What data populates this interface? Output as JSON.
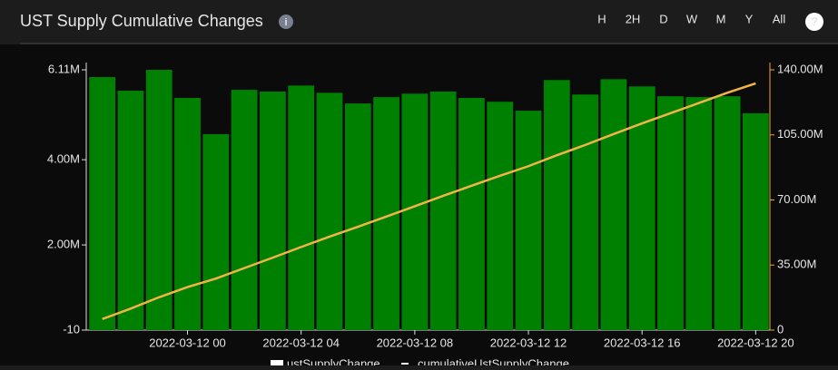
{
  "header": {
    "title": "UST Supply Cumulative Changes",
    "ranges": [
      "H",
      "2H",
      "D",
      "W",
      "M",
      "Y",
      "All"
    ],
    "active": "D"
  },
  "chart_data": {
    "type": "bar",
    "categories": [
      null,
      null,
      null,
      "2022-03-12 00",
      null,
      null,
      null,
      "2022-03-12 04",
      null,
      null,
      null,
      "2022-03-12 08",
      null,
      null,
      null,
      "2022-03-12 12",
      null,
      null,
      null,
      "2022-03-12 16",
      null,
      null,
      null,
      "2022-03-12 20"
    ],
    "series": [
      {
        "name": "ustSupplyChange",
        "type": "bar",
        "color": "#008000",
        "values": [
          5940000,
          5620000,
          6110000,
          5450000,
          4600000,
          5640000,
          5600000,
          5740000,
          5570000,
          5320000,
          5470000,
          5550000,
          5600000,
          5450000,
          5360000,
          5150000,
          5870000,
          5530000,
          5890000,
          5720000,
          5490000,
          5470000,
          5490000,
          5090000
        ]
      },
      {
        "name": "cumulativeUstSupplyChange",
        "type": "line",
        "axis": "y2",
        "color": "#f2b544",
        "values": [
          5940000,
          11560000,
          17670000,
          23120000,
          27720000,
          33360000,
          38960000,
          44700000,
          50270000,
          55590000,
          61060000,
          66610000,
          72210000,
          77660000,
          83020000,
          88170000,
          94040000,
          99570000,
          105460000,
          111180000,
          116670000,
          122140000,
          127630000,
          132720000
        ]
      }
    ],
    "ylim": [
      -10,
      6110000
    ],
    "yticks": [
      -10,
      {
        "value": 2000000,
        "label": "2.00M"
      },
      {
        "value": 4000000,
        "label": "4.00M"
      },
      {
        "value": 6110000,
        "label": "6.11M"
      }
    ],
    "y2lim": [
      0,
      140000000
    ],
    "y2ticks": [
      0,
      {
        "value": 35000000,
        "label": "35.00M"
      },
      {
        "value": 70000000,
        "label": "70.00M"
      },
      {
        "value": 105000000,
        "label": "105.00M"
      },
      {
        "value": 140000000,
        "label": "140.00M"
      }
    ],
    "y2color": "#f2a33a"
  }
}
